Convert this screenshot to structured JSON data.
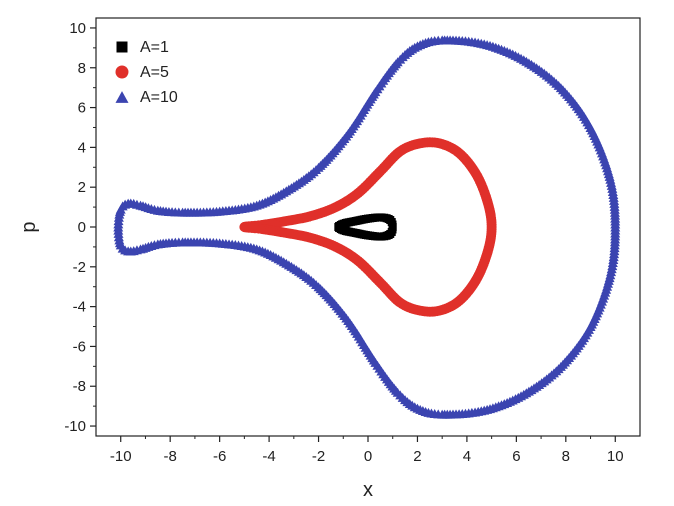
{
  "chart_data": {
    "type": "scatter",
    "title": "",
    "xlabel": "x",
    "ylabel": "p",
    "xlim": [
      -11,
      11
    ],
    "ylim": [
      -10.5,
      10.5
    ],
    "x_ticks": [
      -10,
      -8,
      -6,
      -4,
      -2,
      0,
      2,
      4,
      6,
      8,
      10
    ],
    "x_tick_labels": [
      "-10",
      "-8",
      "-6",
      "-4",
      "-2",
      "0",
      "2",
      "4",
      "6",
      "8",
      "10"
    ],
    "y_ticks": [
      -10,
      -8,
      -6,
      -4,
      -2,
      0,
      2,
      4,
      6,
      8,
      10
    ],
    "y_tick_labels": [
      "-10",
      "-8",
      "-6",
      "-4",
      "-2",
      "0",
      "2",
      "4",
      "6",
      "8",
      "10"
    ],
    "grid": false,
    "legend_position": "top-left",
    "series": [
      {
        "name": "A=1",
        "marker": "square",
        "color": "#000000",
        "x": [
          1.0,
          0.9,
          0.55,
          0.0,
          -0.5,
          -0.9,
          -1.1,
          -1.2,
          -1.1,
          -0.9,
          -0.5,
          0.0,
          0.55,
          0.9,
          1.0
        ],
        "y": [
          0.0,
          0.35,
          0.48,
          0.42,
          0.3,
          0.2,
          0.1,
          0.0,
          -0.1,
          -0.2,
          -0.3,
          -0.42,
          -0.48,
          -0.35,
          0.0
        ]
      },
      {
        "name": "A=5",
        "marker": "circle",
        "color": "#e0302a",
        "x": [
          5.0,
          4.85,
          4.4,
          3.7,
          2.9,
          2.1,
          1.3,
          0.5,
          -0.4,
          -1.3,
          -2.3,
          -3.3,
          -4.3,
          -5.0,
          -4.3,
          -3.3,
          -2.3,
          -1.3,
          -0.4,
          0.5,
          1.3,
          2.1,
          2.9,
          3.7,
          4.4,
          4.85,
          5.0
        ],
        "y": [
          0.0,
          1.2,
          2.6,
          3.7,
          4.2,
          4.2,
          3.8,
          2.8,
          1.7,
          1.0,
          0.55,
          0.3,
          0.1,
          0.0,
          -0.1,
          -0.3,
          -0.55,
          -1.0,
          -1.7,
          -2.8,
          -3.8,
          -4.2,
          -4.2,
          -3.7,
          -2.6,
          -1.2,
          0.0
        ]
      },
      {
        "name": "A=10",
        "marker": "triangle",
        "color": "#3b44b0",
        "x": [
          10.0,
          9.8,
          9.0,
          7.8,
          6.3,
          4.7,
          3.0,
          2.0,
          1.2,
          0.3,
          -0.8,
          -2.0,
          -3.2,
          -4.5,
          -6.0,
          -7.5,
          -8.5,
          -9.2,
          -9.7,
          -10.0,
          -10.1,
          -10.0,
          -9.7,
          -9.2,
          -8.5,
          -7.5,
          -6.0,
          -4.5,
          -3.2,
          -2.0,
          -0.8,
          0.3,
          1.2,
          2.0,
          3.0,
          4.7,
          6.3,
          7.8,
          9.0,
          9.8,
          10.0
        ],
        "y": [
          0.0,
          2.4,
          5.0,
          7.0,
          8.4,
          9.2,
          9.4,
          9.1,
          8.3,
          6.8,
          4.7,
          3.0,
          1.9,
          1.1,
          0.8,
          0.75,
          0.85,
          1.1,
          1.2,
          0.9,
          0.0,
          -0.9,
          -1.2,
          -1.1,
          -0.85,
          -0.75,
          -0.8,
          -1.1,
          -1.9,
          -3.0,
          -4.7,
          -6.8,
          -8.3,
          -9.1,
          -9.4,
          -9.2,
          -8.4,
          -7.0,
          -5.0,
          -2.4,
          0.0
        ]
      }
    ]
  }
}
